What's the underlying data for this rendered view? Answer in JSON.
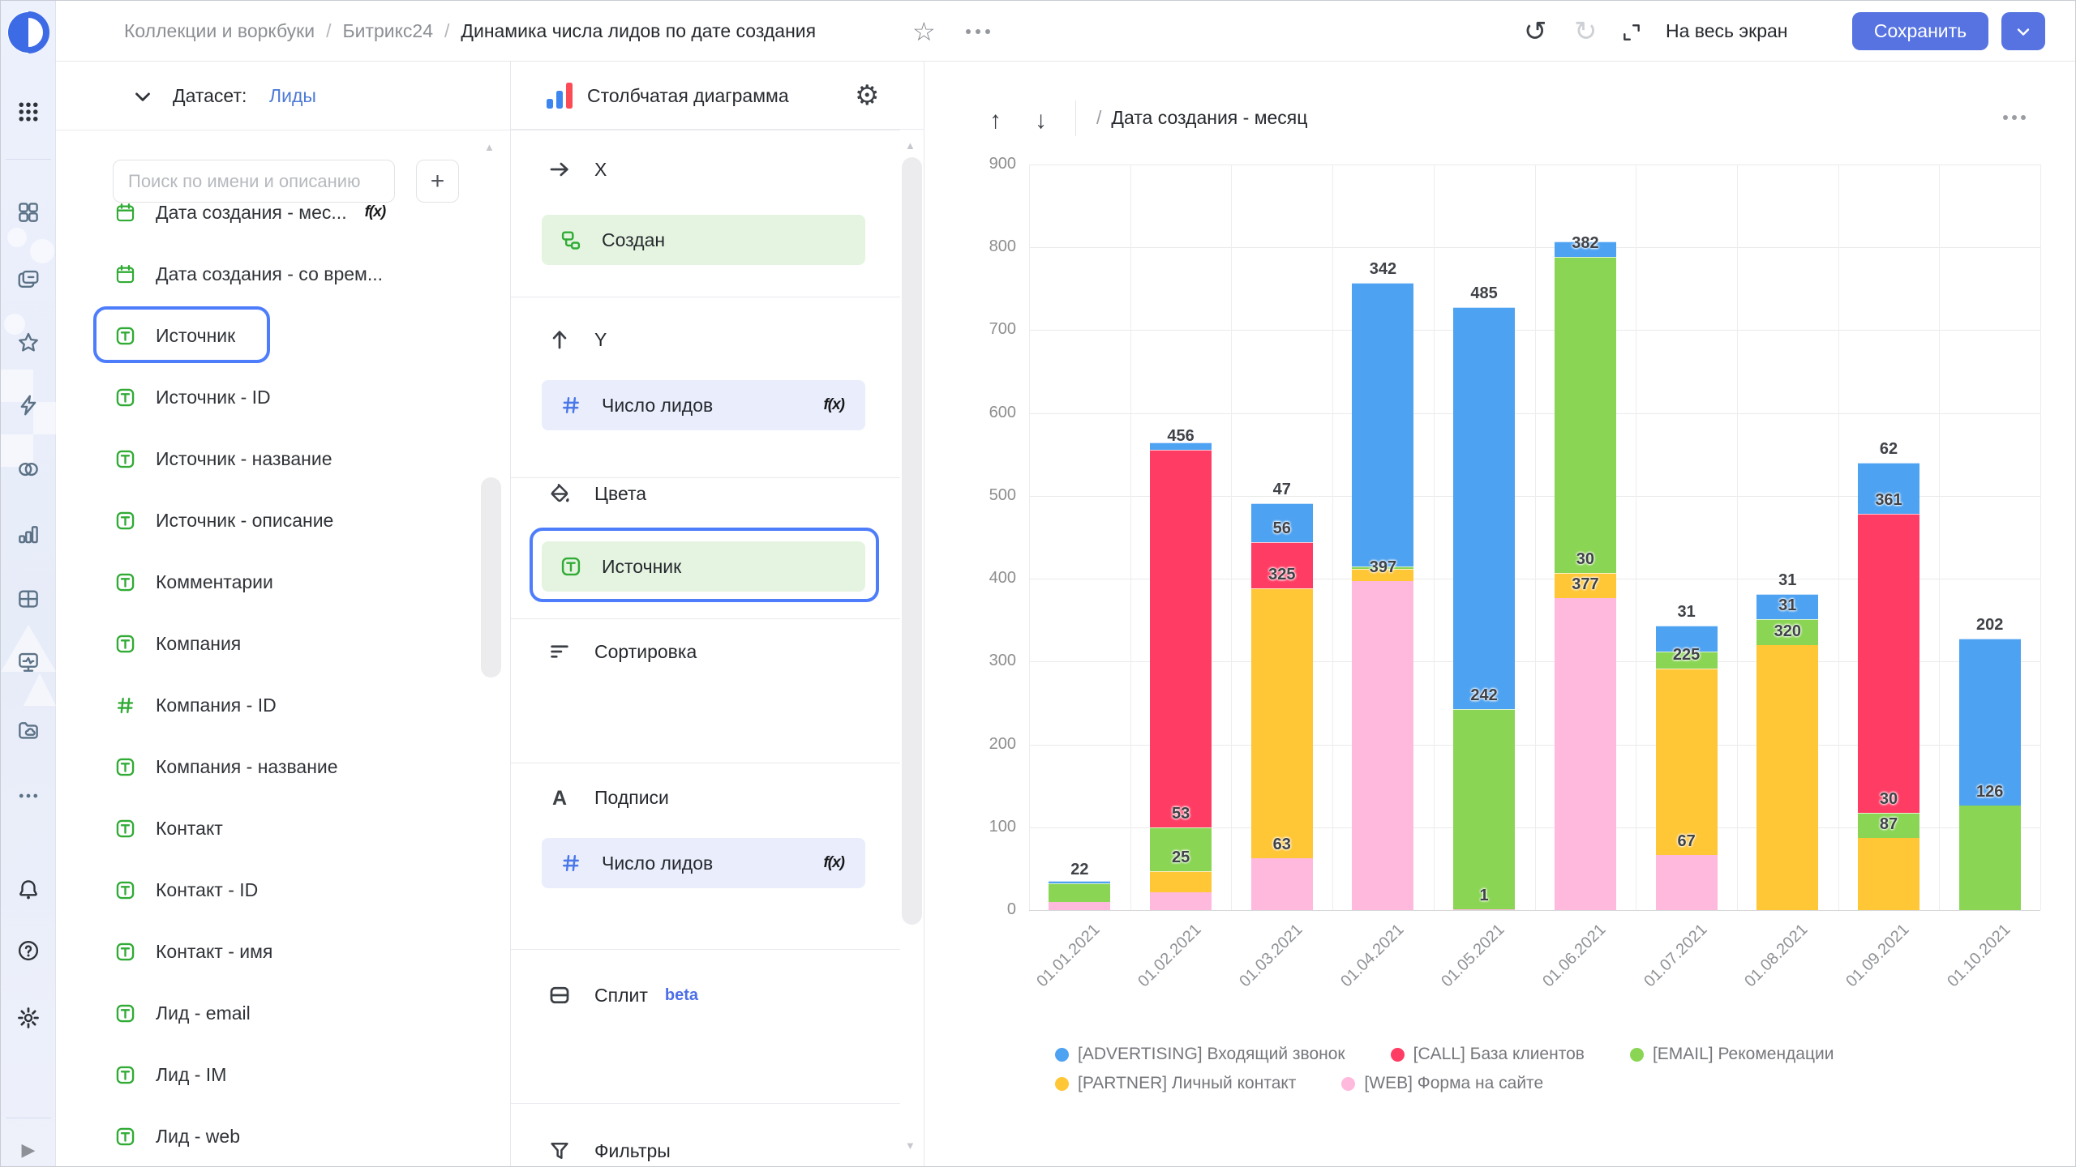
{
  "topbar": {
    "breadcrumbs": [
      "Коллекции и воркбуки",
      "Битрикс24",
      "Динамика числа лидов по дате создания"
    ],
    "fullscreen_label": "На весь экран",
    "save_label": "Сохранить"
  },
  "rail": {
    "items": [
      "apps-grid",
      "navigation-squares",
      "collections-folders",
      "favorites-star",
      "editor-lightning",
      "connections-circles",
      "charts-bars",
      "dashboards-table",
      "monitoring-screen",
      "storage-folder-cloud",
      "more-ellipsis"
    ],
    "footer_items": [
      "notifications-bell",
      "help-question",
      "settings-gear"
    ],
    "expand": "play"
  },
  "dataset_panel": {
    "title_label": "Датасет:",
    "dataset_name": "Лиды",
    "search_placeholder": "Поиск по имени и описанию",
    "add_button_label": "+",
    "fields": [
      {
        "name": "Дата создания - мес...",
        "icon": "calendar",
        "formula": true
      },
      {
        "name": "Дата создания - со врем...",
        "icon": "calendar"
      },
      {
        "name": "Источник",
        "icon": "text",
        "selected": true
      },
      {
        "name": "Источник - ID",
        "icon": "text"
      },
      {
        "name": "Источник - название",
        "icon": "text"
      },
      {
        "name": "Источник - описание",
        "icon": "text"
      },
      {
        "name": "Комментарии",
        "icon": "text"
      },
      {
        "name": "Компания",
        "icon": "text"
      },
      {
        "name": "Компания - ID",
        "icon": "number"
      },
      {
        "name": "Компания - название",
        "icon": "text"
      },
      {
        "name": "Контакт",
        "icon": "text"
      },
      {
        "name": "Контакт - ID",
        "icon": "text"
      },
      {
        "name": "Контакт - имя",
        "icon": "text"
      },
      {
        "name": "Лид - email",
        "icon": "text"
      },
      {
        "name": "Лид - IM",
        "icon": "text"
      },
      {
        "name": "Лид - web",
        "icon": "text"
      }
    ]
  },
  "config_panel": {
    "chart_type_label": "Столбчатая диаграмма",
    "sections": [
      {
        "id": "x",
        "label": "X",
        "icon": "arrow-right",
        "pills": [
          {
            "text": "Создан",
            "icon": "tree",
            "style": "green"
          }
        ]
      },
      {
        "id": "y",
        "label": "Y",
        "icon": "arrow-up",
        "pills": [
          {
            "text": "Число лидов",
            "icon": "hash",
            "style": "blue",
            "formula": true
          }
        ]
      },
      {
        "id": "colors",
        "label": "Цвета",
        "icon": "paint",
        "pills": [
          {
            "text": "Источник",
            "icon": "text",
            "style": "green",
            "selected": true
          }
        ]
      },
      {
        "id": "sort",
        "label": "Сортировка",
        "icon": "sort",
        "pills": []
      },
      {
        "id": "labels",
        "label": "Подписи",
        "icon": "letter-a",
        "pills": [
          {
            "text": "Число лидов",
            "icon": "hash",
            "style": "blue",
            "formula": true
          }
        ]
      },
      {
        "id": "split",
        "label": "Сплит",
        "icon": "split",
        "badge": "beta",
        "pills": []
      },
      {
        "id": "filters",
        "label": "Фильтры",
        "icon": "funnel",
        "pills": []
      }
    ]
  },
  "chart": {
    "toolbar": {
      "slash": "/",
      "breadcrumb": "Дата создания - месяц"
    },
    "chart_data": {
      "type": "bar",
      "stacked": true,
      "title": "",
      "xlabel": "",
      "ylabel": "",
      "ylim": [
        0,
        900
      ],
      "ytick_step": 100,
      "grid": true,
      "legend_position": "bottom",
      "categories": [
        "01.01.2021",
        "01.02.2021",
        "01.03.2021",
        "01.04.2021",
        "01.05.2021",
        "01.06.2021",
        "01.07.2021",
        "01.08.2021",
        "01.09.2021",
        "01.10.2021"
      ],
      "series": [
        {
          "name": "[WEB] Форма на сайте",
          "color": "#FFB9DD",
          "values": [
            10,
            22,
            63,
            397,
            1,
            377,
            67,
            0,
            0,
            0
          ],
          "labels": [
            null,
            null,
            "63",
            "397",
            "1",
            "377",
            "67",
            null,
            null,
            null
          ]
        },
        {
          "name": "[PARTNER] Личный контакт",
          "color": "#FFC636",
          "values": [
            0,
            25,
            325,
            15,
            0,
            30,
            225,
            320,
            87,
            0
          ],
          "labels": [
            null,
            "25",
            "325",
            null,
            null,
            "30",
            "225",
            "320",
            "87",
            null
          ]
        },
        {
          "name": "[EMAIL] Рекомендации",
          "color": "#8AD554",
          "values": [
            22,
            53,
            0,
            3,
            242,
            382,
            20,
            31,
            30,
            126
          ],
          "labels": [
            "22",
            "53",
            null,
            null,
            "242",
            "382",
            null,
            "31",
            "30",
            "126"
          ]
        },
        {
          "name": "[CALL] База клиентов",
          "color": "#FF3D64",
          "values": [
            0,
            456,
            56,
            0,
            0,
            0,
            0,
            0,
            361,
            0
          ],
          "labels": [
            null,
            "456",
            "56",
            null,
            null,
            null,
            null,
            null,
            "361",
            null
          ]
        },
        {
          "name": "[ADVERTISING] Входящий звонок",
          "color": "#4DA2F1",
          "values": [
            3,
            8,
            47,
            342,
            485,
            18,
            31,
            31,
            62,
            202
          ],
          "labels": [
            null,
            null,
            "47",
            "342",
            "485",
            null,
            "31",
            "31",
            "62",
            "202"
          ]
        }
      ]
    }
  }
}
